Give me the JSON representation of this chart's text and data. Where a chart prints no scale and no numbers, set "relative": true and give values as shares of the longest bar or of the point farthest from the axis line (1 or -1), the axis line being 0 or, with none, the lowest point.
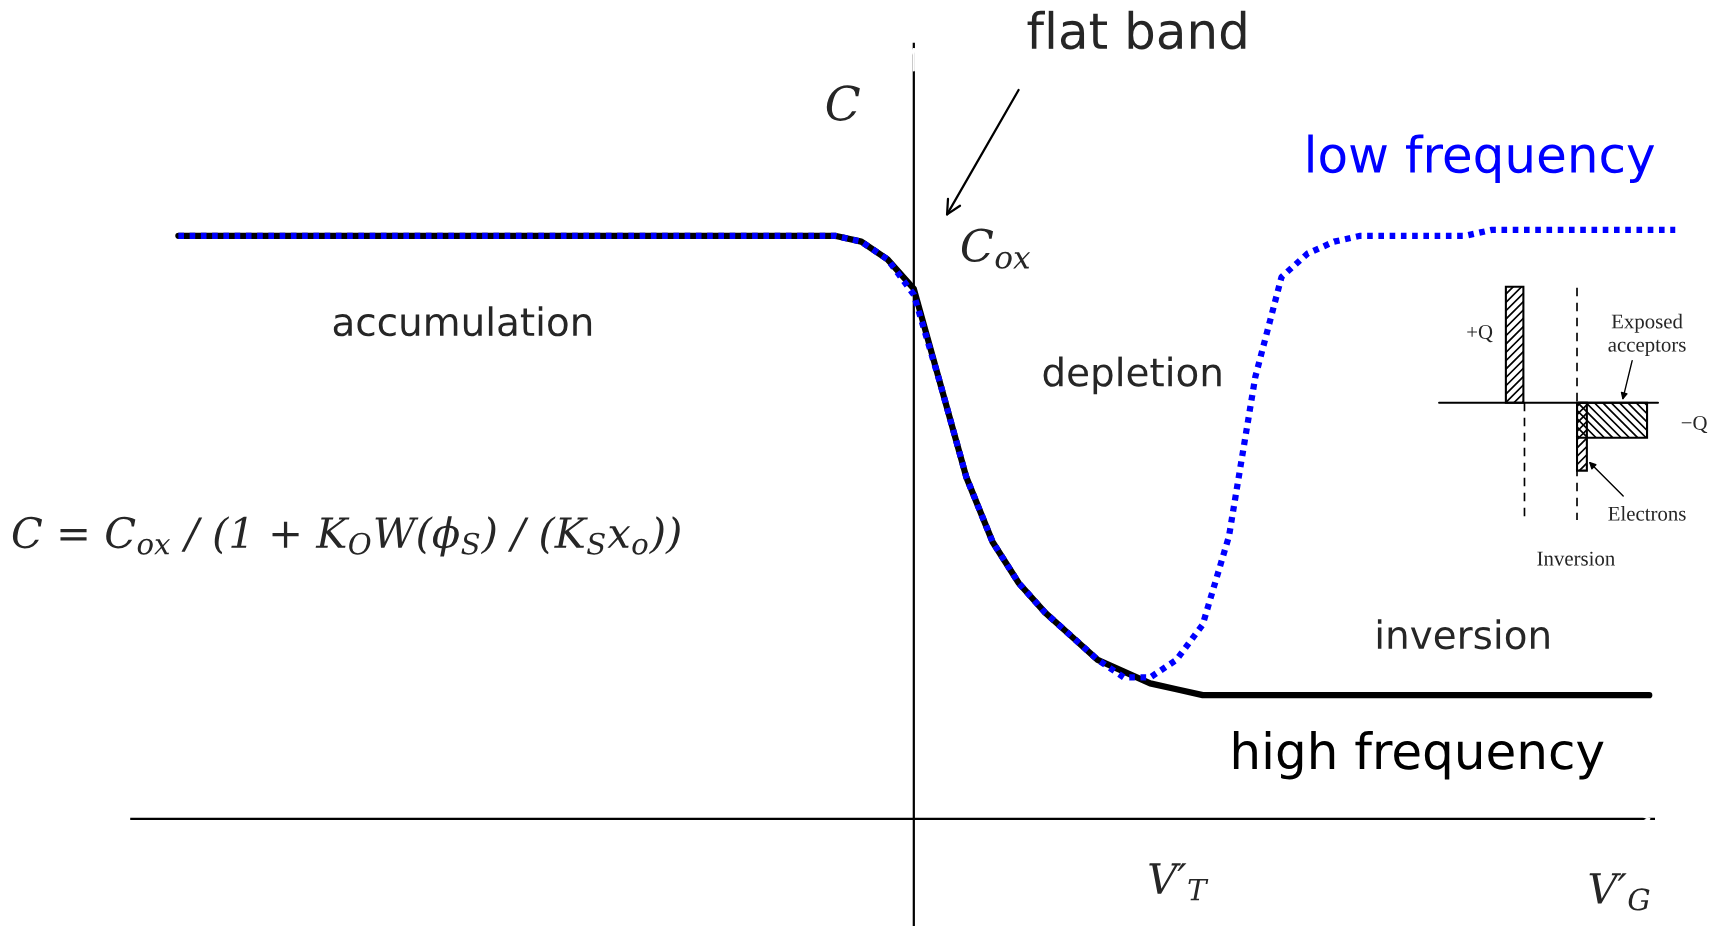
{
  "chart_data": {
    "type": "line",
    "relative": true,
    "xlabel": "V′$_{G}$",
    "ylabel": "C",
    "categories": [
      null,
      null,
      null,
      null,
      null,
      null,
      null,
      null,
      null,
      null,
      null,
      null,
      null,
      null,
      null,
      null,
      null,
      null,
      null,
      null,
      null,
      null,
      null,
      null,
      null,
      null,
      null,
      null,
      null,
      null,
      null,
      null,
      null,
      null,
      null,
      null,
      null,
      null,
      null,
      null,
      null,
      null,
      null,
      null,
      null,
      null,
      null,
      null,
      null,
      null,
      null,
      null,
      null,
      null,
      null,
      null,
      null,
      null
    ],
    "series": [
      {
        "name": "high frequency",
        "color": "#000000",
        "line_style": "solid",
        "values": [
          0.99,
          0.99,
          0.99,
          0.99,
          0.99,
          0.99,
          0.99,
          0.99,
          0.99,
          0.99,
          0.99,
          0.99,
          0.99,
          0.99,
          0.99,
          0.99,
          0.99,
          0.99,
          0.99,
          0.99,
          0.99,
          0.99,
          0.99,
          0.99,
          0.99,
          0.99,
          0.98,
          0.95,
          0.9,
          0.74,
          0.58,
          0.47,
          0.4,
          0.35,
          0.31,
          0.27,
          0.25,
          0.23,
          0.22,
          0.21,
          0.21,
          0.21,
          0.21,
          0.21,
          0.21,
          0.21,
          0.21,
          0.21,
          0.21,
          0.21,
          0.21,
          0.21,
          0.21,
          0.21,
          0.21,
          0.21,
          0.21,
          null
        ]
      },
      {
        "name": "low frequency",
        "color": "#0000ff",
        "line_style": "dotted",
        "values": [
          0.99,
          0.99,
          0.99,
          0.99,
          0.99,
          0.99,
          0.99,
          0.99,
          0.99,
          0.99,
          0.99,
          0.99,
          0.99,
          0.99,
          0.99,
          0.99,
          0.99,
          0.99,
          0.99,
          0.99,
          0.99,
          0.99,
          0.99,
          0.99,
          0.99,
          0.99,
          0.98,
          0.95,
          0.89,
          0.74,
          0.58,
          0.47,
          0.4,
          0.35,
          0.31,
          0.27,
          0.24,
          0.24,
          0.27,
          0.33,
          0.48,
          0.75,
          0.92,
          0.96,
          0.98,
          0.99,
          0.99,
          0.99,
          0.99,
          0.99,
          1.0,
          1.0,
          1.0,
          1.0,
          1.0,
          1.0,
          1.0,
          1.0
        ]
      }
    ],
    "annotations": [
      "flat band",
      "C$_{ox}$",
      "accumulation",
      "depletion",
      "inversion",
      "C = C$_{ox}$ / (1 + K$_{O}$W(ϕ$_{S}$) / (K$_{S}$x$_{o}$))",
      "V′$_{T}$",
      "+Q",
      "Exposed\nacceptors",
      "−Q",
      "Electrons",
      "Inversion"
    ]
  }
}
